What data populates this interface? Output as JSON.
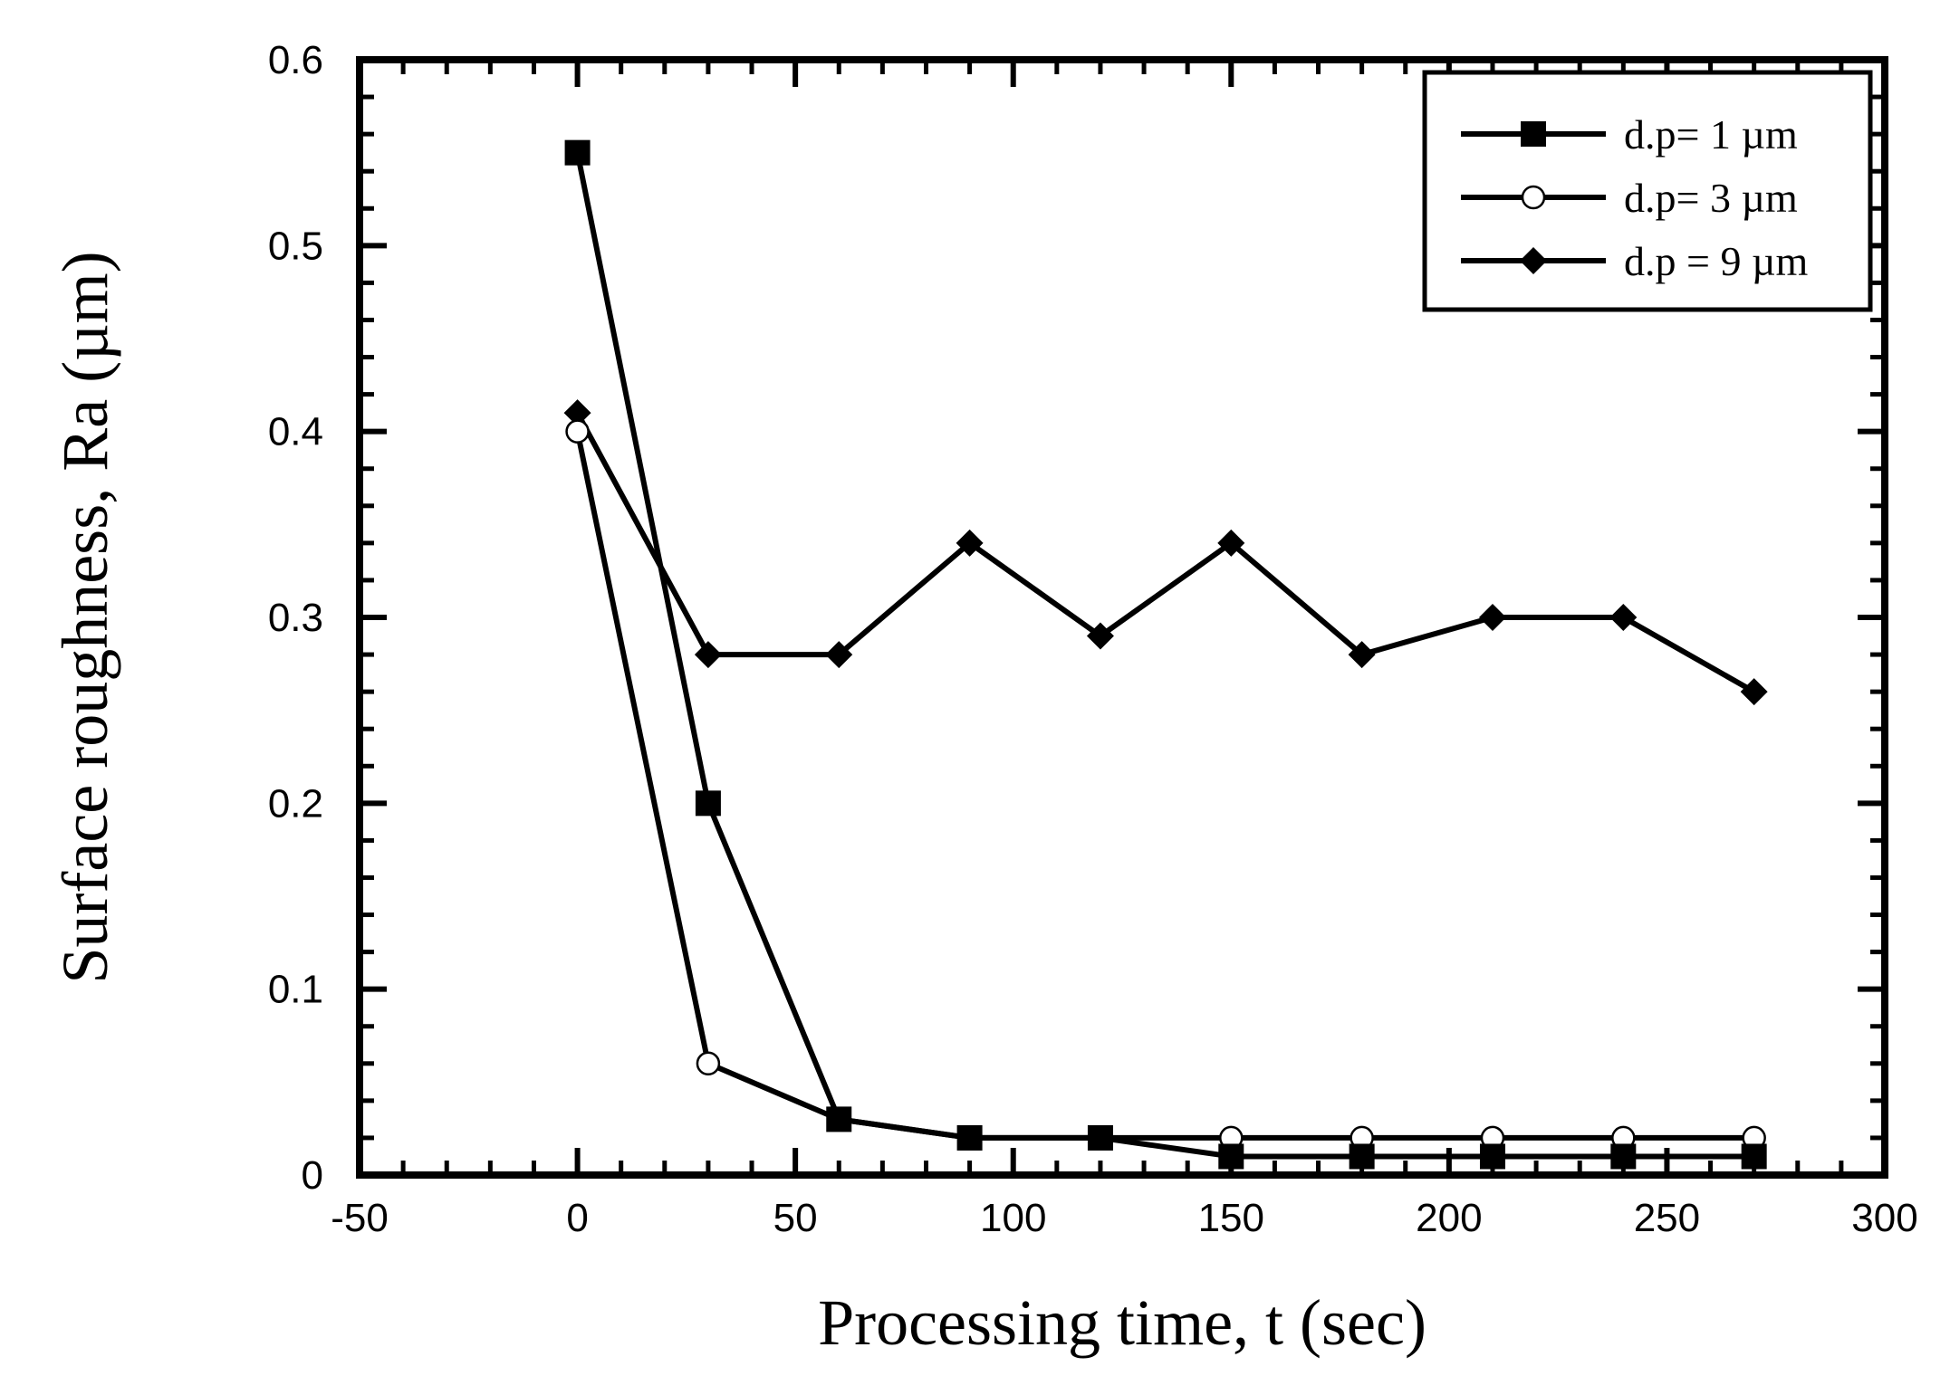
{
  "chart_data": {
    "type": "line",
    "title": "",
    "xlabel": "Processing time, t (sec)",
    "ylabel": "Surface roughness, Ra (µm)",
    "xlim": [
      -50,
      300
    ],
    "ylim": [
      0,
      0.6
    ],
    "x_ticks": [
      -50,
      0,
      50,
      100,
      150,
      200,
      250,
      300
    ],
    "x_tick_labels": [
      "-50",
      "0",
      "50",
      "100",
      "150",
      "200",
      "250",
      "300"
    ],
    "y_ticks": [
      0,
      0.1,
      0.2,
      0.3,
      0.4,
      0.5,
      0.6
    ],
    "y_tick_labels": [
      "0",
      "0.1",
      "0.2",
      "0.3",
      "0.4",
      "0.5",
      "0.6"
    ],
    "grid": false,
    "legend_position": "top-right",
    "x": [
      0,
      30,
      60,
      90,
      120,
      150,
      180,
      210,
      240,
      270
    ],
    "series": [
      {
        "name": "d.p= 1 µm",
        "marker": "square-filled",
        "values": [
          0.55,
          0.2,
          0.03,
          0.02,
          0.02,
          0.01,
          0.01,
          0.01,
          0.01,
          0.01
        ]
      },
      {
        "name": "d.p= 3 µm",
        "marker": "circle-open",
        "values": [
          0.4,
          0.06,
          0.03,
          0.02,
          0.02,
          0.02,
          0.02,
          0.02,
          0.02,
          0.02
        ]
      },
      {
        "name": "d.p = 9 µm",
        "marker": "diamond-filled",
        "values": [
          0.41,
          0.28,
          0.28,
          0.34,
          0.29,
          0.34,
          0.28,
          0.3,
          0.3,
          0.26
        ]
      }
    ],
    "colors": {
      "line": "#000000",
      "background": "#ffffff"
    }
  }
}
